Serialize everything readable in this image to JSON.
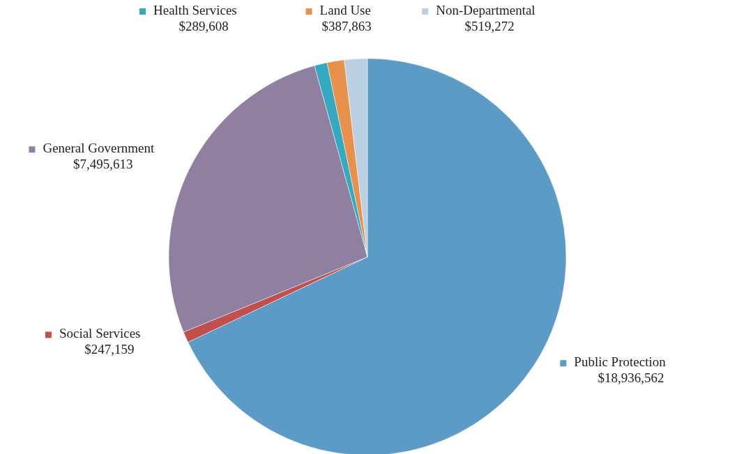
{
  "chart_data": {
    "type": "pie",
    "categories": [
      "Public Protection",
      "Social Services",
      "General Government",
      "Health Services",
      "Land Use",
      "Non-Departmental"
    ],
    "values": [
      18936562,
      247159,
      7495613,
      289608,
      387863,
      519272
    ],
    "value_labels": [
      "$18,936,562",
      "$247,159",
      "$7,495,613",
      "$289,608",
      "$387,863",
      "$519,272"
    ],
    "colors": [
      "#5b9bc6",
      "#c0504d",
      "#8f80a2",
      "#35a9bf",
      "#e8914c",
      "#bcd0e4"
    ],
    "legend": "top"
  }
}
